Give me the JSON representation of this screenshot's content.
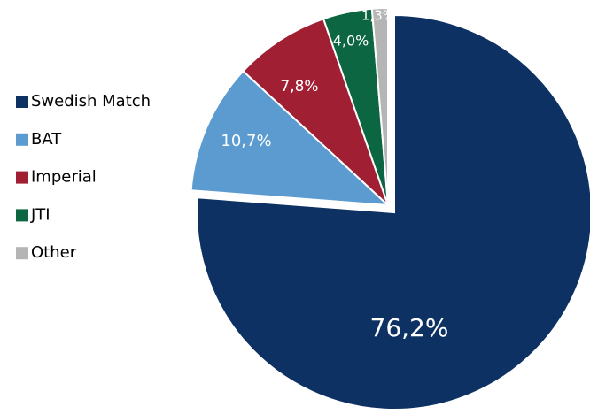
{
  "chart_data": {
    "type": "pie",
    "categories": [
      "Swedish Match",
      "BAT",
      "Imperial",
      "JTI",
      "Other"
    ],
    "values": [
      76.2,
      10.7,
      7.8,
      4.0,
      1.3
    ],
    "value_labels": [
      "76,2%",
      "10,7%",
      "7,8%",
      "4,0%",
      "1,3%"
    ],
    "colors": [
      "#0d3162",
      "#5b9bd0",
      "#a01f33",
      "#0b6641",
      "#b5b5b5"
    ],
    "legend": "left"
  }
}
